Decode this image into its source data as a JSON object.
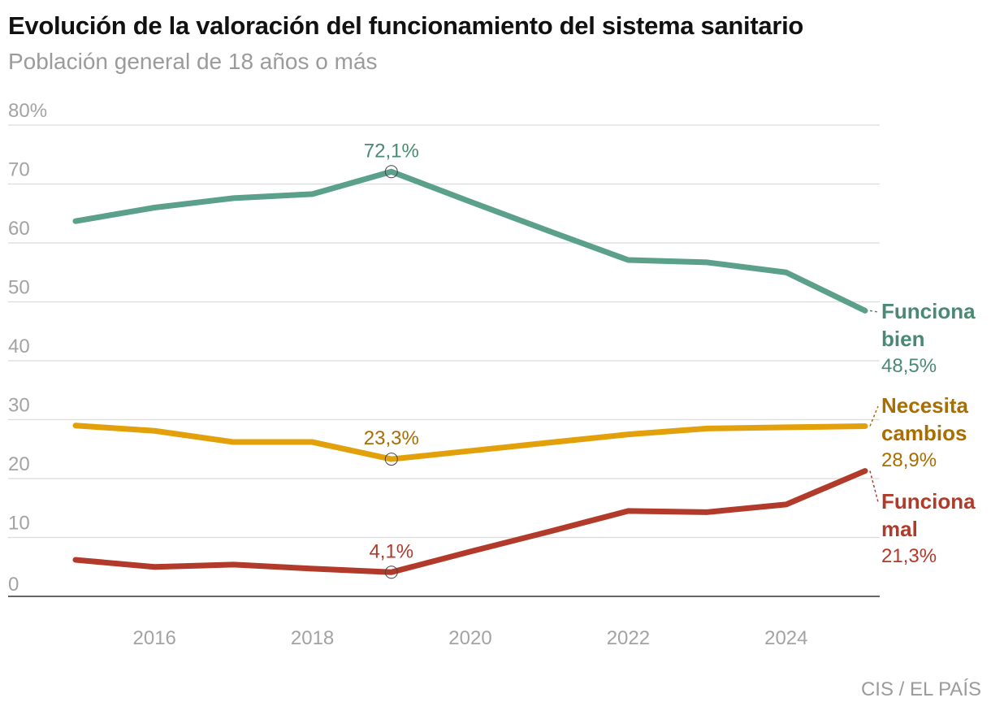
{
  "header": {
    "title": "Evolución de la valoración del funcionamiento del sistema sanitario",
    "subtitle": "Población general de 18 años o más"
  },
  "footer": {
    "source": "CIS / EL PAÍS"
  },
  "chart_data": {
    "type": "line",
    "title": "Evolución de la valoración del funcionamiento del sistema sanitario",
    "subtitle": "Población general de 18 años o más",
    "xlabel": "",
    "ylabel": "",
    "x": [
      2015,
      2016,
      2017,
      2018,
      2019,
      2020,
      2021,
      2022,
      2023,
      2024,
      2025
    ],
    "x_ticks": [
      2016,
      2018,
      2020,
      2022,
      2024
    ],
    "x_tick_labels": [
      "2016",
      "2018",
      "2020",
      "2022",
      "2024"
    ],
    "ylim": [
      0,
      80
    ],
    "y_ticks": [
      0,
      10,
      20,
      30,
      40,
      50,
      60,
      70,
      80
    ],
    "y_tick_labels": [
      "0",
      "10",
      "20",
      "30",
      "40",
      "50",
      "60",
      "70",
      "80%"
    ],
    "grid": true,
    "series": [
      {
        "name": "Funciona bien",
        "label_lines": [
          "Funciona",
          "bien"
        ],
        "color": "#5ba08a",
        "label_color": "#4a8a72",
        "values": [
          63.7,
          66.0,
          67.6,
          68.3,
          72.1,
          67.0,
          62.0,
          57.1,
          56.7,
          55.0,
          48.5
        ],
        "peak_label": "72,1%",
        "end_label": "48,5%"
      },
      {
        "name": "Necesita cambios",
        "label_lines": [
          "Necesita",
          "cambios"
        ],
        "color": "#e2a10b",
        "label_color": "#a96e00",
        "values": [
          29.0,
          28.1,
          26.2,
          26.2,
          23.3,
          24.7,
          26.1,
          27.5,
          28.5,
          28.7,
          28.9
        ],
        "peak_label": "23,3%",
        "end_label": "28,9%"
      },
      {
        "name": "Funciona mal",
        "label_lines": [
          "Funciona",
          "mal"
        ],
        "color": "#b23a2a",
        "label_color": "#b23a2a",
        "values": [
          6.2,
          5.0,
          5.4,
          4.7,
          4.1,
          7.6,
          11.0,
          14.5,
          14.3,
          15.6,
          21.3
        ],
        "peak_label": "4,1%",
        "end_label": "21,3%"
      }
    ],
    "highlight_year": 2019
  }
}
